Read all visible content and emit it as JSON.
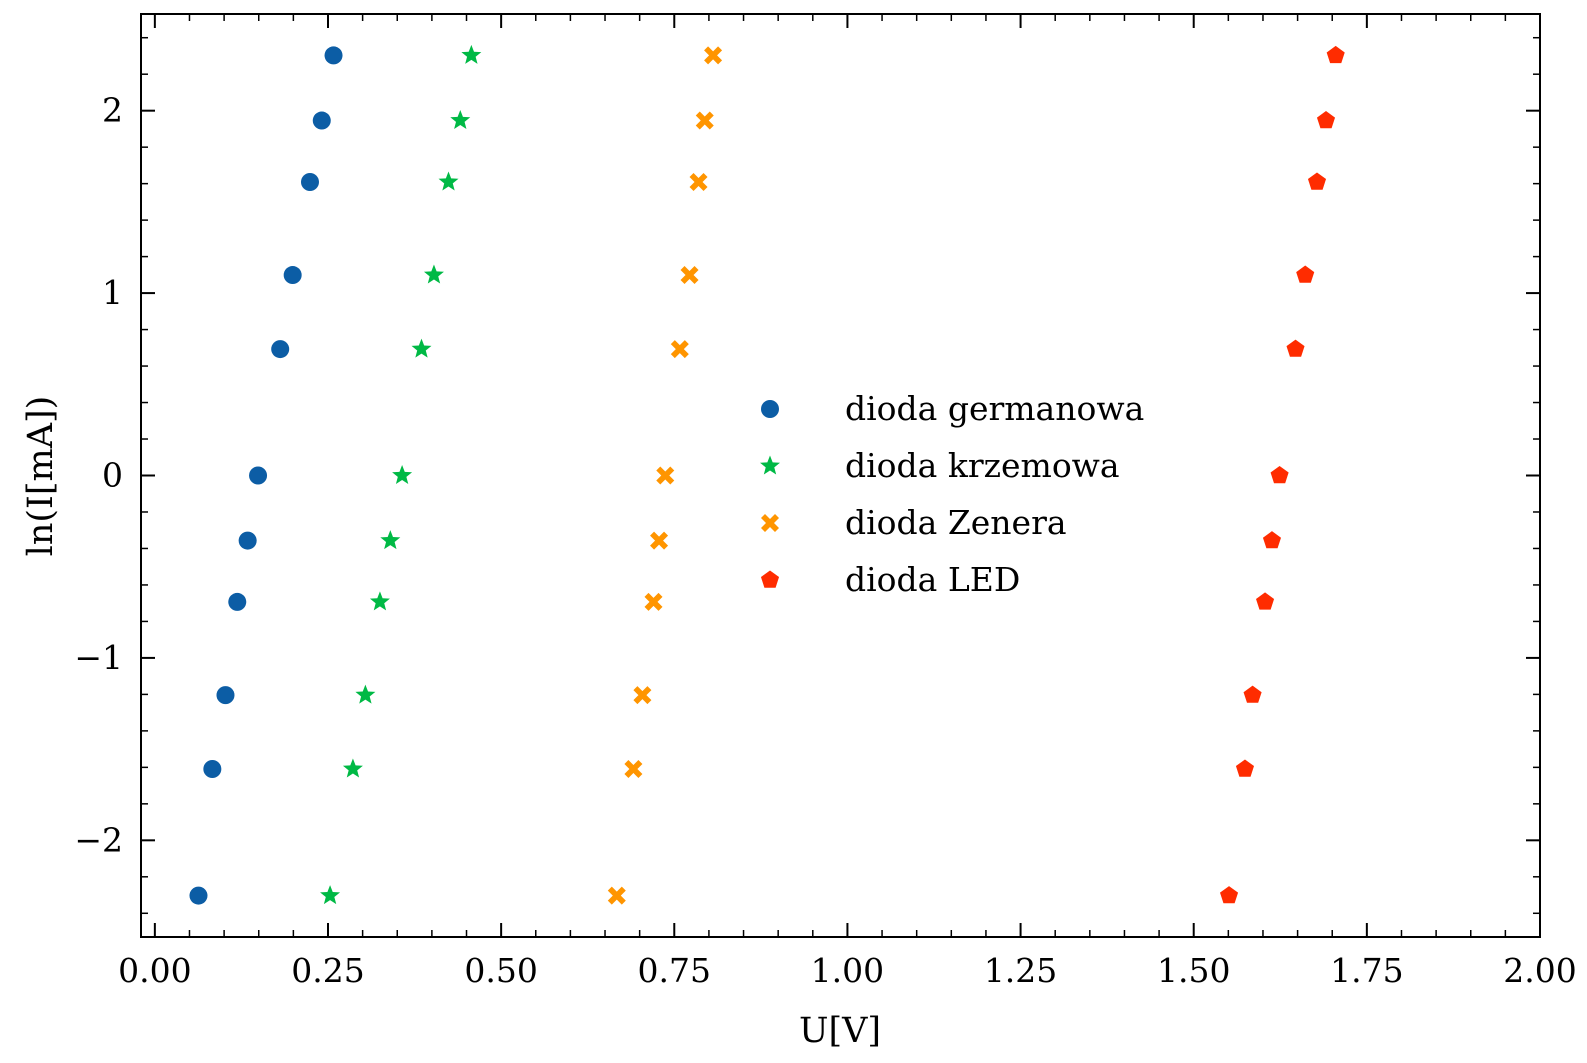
{
  "chart_data": {
    "type": "scatter",
    "title": "",
    "xlabel": "U[V]",
    "ylabel": "ln(I[mA])",
    "xlim": [
      -0.02,
      2.0
    ],
    "ylim": [
      -2.53,
      2.53
    ],
    "grid": false,
    "legend_position": "center",
    "x_ticks": [
      0.0,
      0.25,
      0.5,
      0.75,
      1.0,
      1.25,
      1.5,
      1.75,
      2.0
    ],
    "x_tick_labels": [
      "0.00",
      "0.25",
      "0.50",
      "0.75",
      "1.00",
      "1.25",
      "1.50",
      "1.75",
      "2.00"
    ],
    "y_ticks": [
      -2,
      -1,
      0,
      1,
      2
    ],
    "y_tick_labels": [
      "−2",
      "−1",
      "0",
      "1",
      "2"
    ],
    "series": [
      {
        "name": "dioda germanowa",
        "marker": "circle",
        "color": "#0C5DA5",
        "x": [
          0.063,
          0.083,
          0.102,
          0.119,
          0.134,
          0.149,
          0.181,
          0.199,
          0.224,
          0.241,
          0.258
        ],
        "y": [
          -2.303,
          -1.609,
          -1.204,
          -0.693,
          -0.357,
          0.0,
          0.693,
          1.099,
          1.609,
          1.946,
          2.303
        ]
      },
      {
        "name": "dioda krzemowa",
        "marker": "star",
        "color": "#00B945",
        "x": [
          0.253,
          0.286,
          0.304,
          0.325,
          0.34,
          0.357,
          0.385,
          0.403,
          0.424,
          0.441,
          0.457
        ],
        "y": [
          -2.303,
          -1.609,
          -1.204,
          -0.693,
          -0.357,
          0.0,
          0.693,
          1.099,
          1.609,
          1.946,
          2.303
        ]
      },
      {
        "name": "dioda Zenera",
        "marker": "x-filled",
        "color": "#FF9500",
        "x": [
          0.667,
          0.691,
          0.704,
          0.72,
          0.728,
          0.737,
          0.758,
          0.772,
          0.785,
          0.794,
          0.806
        ],
        "y": [
          -2.303,
          -1.609,
          -1.204,
          -0.693,
          -0.357,
          0.0,
          0.693,
          1.099,
          1.609,
          1.946,
          2.303
        ]
      },
      {
        "name": "dioda LED",
        "marker": "pentagon",
        "color": "#FF2C00",
        "x": [
          1.551,
          1.574,
          1.585,
          1.603,
          1.613,
          1.624,
          1.647,
          1.661,
          1.678,
          1.691,
          1.705
        ],
        "y": [
          -2.303,
          -1.609,
          -1.204,
          -0.693,
          -0.357,
          0.0,
          0.693,
          1.099,
          1.609,
          1.946,
          2.303
        ]
      }
    ]
  }
}
